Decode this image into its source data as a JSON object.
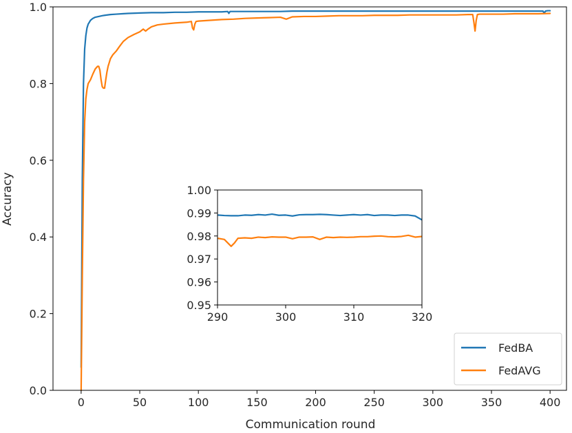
{
  "chart_data": [
    {
      "type": "line",
      "title": "",
      "xlabel": "Communication round",
      "ylabel": "Accuracy",
      "xlim": [
        -24,
        414
      ],
      "ylim": [
        0.0,
        1.0
      ],
      "xticks": [
        0,
        50,
        100,
        150,
        200,
        250,
        300,
        350,
        400
      ],
      "yticks": [
        0.0,
        0.2,
        0.4,
        0.6,
        0.8,
        1.0
      ],
      "xtick_labels": [
        "0",
        "50",
        "100",
        "150",
        "200",
        "250",
        "300",
        "350",
        "400"
      ],
      "ytick_labels": [
        "0.0",
        "0.2",
        "0.4",
        "0.6",
        "0.8",
        "1.0"
      ],
      "grid": false,
      "legend_position": "bottom-right",
      "series": [
        {
          "name": "FedBA",
          "color": "#1f77b4",
          "x": [
            0,
            1,
            2,
            3,
            4,
            5,
            6,
            7,
            8,
            10,
            12,
            15,
            18,
            20,
            25,
            30,
            35,
            40,
            50,
            60,
            70,
            80,
            90,
            100,
            110,
            120,
            125,
            126,
            127,
            130,
            140,
            150,
            160,
            170,
            180,
            190,
            200,
            210,
            220,
            230,
            240,
            250,
            260,
            270,
            280,
            290,
            295,
            300,
            310,
            320,
            330,
            340,
            350,
            360,
            370,
            380,
            390,
            394,
            395,
            396,
            398,
            400
          ],
          "y": [
            0.06,
            0.55,
            0.8,
            0.89,
            0.925,
            0.945,
            0.955,
            0.96,
            0.965,
            0.97,
            0.973,
            0.975,
            0.977,
            0.978,
            0.98,
            0.981,
            0.982,
            0.983,
            0.984,
            0.985,
            0.985,
            0.986,
            0.986,
            0.987,
            0.987,
            0.987,
            0.988,
            0.983,
            0.988,
            0.988,
            0.988,
            0.988,
            0.988,
            0.988,
            0.989,
            0.989,
            0.989,
            0.989,
            0.989,
            0.989,
            0.989,
            0.989,
            0.989,
            0.989,
            0.989,
            0.989,
            0.989,
            0.989,
            0.989,
            0.989,
            0.989,
            0.989,
            0.989,
            0.989,
            0.989,
            0.989,
            0.989,
            0.989,
            0.983,
            0.989,
            0.99,
            0.99
          ]
        },
        {
          "name": "FedAVG",
          "color": "#ff7f0e",
          "x": [
            0,
            1,
            2,
            3,
            4,
            5,
            6,
            8,
            10,
            12,
            14,
            15,
            16,
            17,
            18,
            19,
            20,
            21,
            22,
            23,
            24,
            25,
            27,
            30,
            33,
            36,
            40,
            45,
            50,
            53,
            55,
            57,
            60,
            65,
            70,
            80,
            90,
            94,
            95,
            96,
            97,
            98,
            100,
            110,
            120,
            130,
            140,
            150,
            160,
            170,
            175,
            180,
            190,
            200,
            210,
            220,
            230,
            240,
            250,
            260,
            270,
            280,
            290,
            300,
            310,
            320,
            330,
            334,
            335,
            336,
            337,
            338,
            340,
            350,
            360,
            370,
            380,
            390,
            400
          ],
          "y": [
            0.0,
            0.3,
            0.55,
            0.7,
            0.76,
            0.785,
            0.8,
            0.81,
            0.825,
            0.838,
            0.845,
            0.845,
            0.835,
            0.81,
            0.792,
            0.788,
            0.788,
            0.81,
            0.83,
            0.845,
            0.855,
            0.865,
            0.875,
            0.885,
            0.898,
            0.91,
            0.92,
            0.928,
            0.935,
            0.942,
            0.937,
            0.942,
            0.948,
            0.953,
            0.955,
            0.958,
            0.96,
            0.962,
            0.945,
            0.94,
            0.955,
            0.962,
            0.963,
            0.965,
            0.967,
            0.968,
            0.97,
            0.971,
            0.972,
            0.973,
            0.968,
            0.974,
            0.975,
            0.975,
            0.976,
            0.977,
            0.977,
            0.977,
            0.978,
            0.978,
            0.978,
            0.979,
            0.979,
            0.979,
            0.979,
            0.979,
            0.98,
            0.98,
            0.96,
            0.937,
            0.965,
            0.98,
            0.981,
            0.981,
            0.981,
            0.982,
            0.982,
            0.982,
            0.983
          ]
        }
      ]
    },
    {
      "type": "line",
      "title": "",
      "xlabel": "",
      "ylabel": "",
      "xlim": [
        290,
        320
      ],
      "ylim": [
        0.95,
        1.0
      ],
      "xticks": [
        290,
        300,
        310,
        320
      ],
      "yticks": [
        0.95,
        0.96,
        0.97,
        0.98,
        0.99,
        1.0
      ],
      "xtick_labels": [
        "290",
        "300",
        "310",
        "320"
      ],
      "ytick_labels": [
        "0.95",
        "0.96",
        "0.97",
        "0.98",
        "0.99",
        "1.00"
      ],
      "grid": false,
      "series": [
        {
          "name": "FedBA",
          "color": "#1f77b4",
          "x": [
            290,
            291,
            292,
            293,
            294,
            295,
            296,
            297,
            298,
            299,
            300,
            301,
            302,
            303,
            304,
            305,
            306,
            307,
            308,
            309,
            310,
            311,
            312,
            313,
            314,
            315,
            316,
            317,
            318,
            319,
            320
          ],
          "y": [
            0.9891,
            0.9889,
            0.9888,
            0.9888,
            0.9891,
            0.989,
            0.9893,
            0.9891,
            0.9895,
            0.989,
            0.9891,
            0.9887,
            0.9892,
            0.9893,
            0.9893,
            0.9894,
            0.9893,
            0.9891,
            0.9889,
            0.9891,
            0.9893,
            0.9891,
            0.9893,
            0.9889,
            0.9891,
            0.9891,
            0.9889,
            0.9891,
            0.9891,
            0.9887,
            0.987
          ]
        },
        {
          "name": "FedAVG",
          "color": "#ff7f0e",
          "x": [
            290,
            291,
            291.5,
            292,
            292.5,
            293,
            294,
            295,
            296,
            297,
            298,
            299,
            300,
            301,
            302,
            303,
            304,
            305,
            306,
            307,
            308,
            309,
            310,
            311,
            312,
            313,
            314,
            315,
            316,
            317,
            318,
            319,
            320
          ],
          "y": [
            0.979,
            0.9785,
            0.977,
            0.9755,
            0.977,
            0.979,
            0.9792,
            0.979,
            0.9795,
            0.9793,
            0.9796,
            0.9795,
            0.9795,
            0.9788,
            0.9795,
            0.9795,
            0.9796,
            0.9785,
            0.9795,
            0.9793,
            0.9795,
            0.9794,
            0.9795,
            0.9797,
            0.9797,
            0.9799,
            0.98,
            0.9797,
            0.9796,
            0.9798,
            0.9803,
            0.9795,
            0.9798
          ]
        }
      ]
    }
  ]
}
